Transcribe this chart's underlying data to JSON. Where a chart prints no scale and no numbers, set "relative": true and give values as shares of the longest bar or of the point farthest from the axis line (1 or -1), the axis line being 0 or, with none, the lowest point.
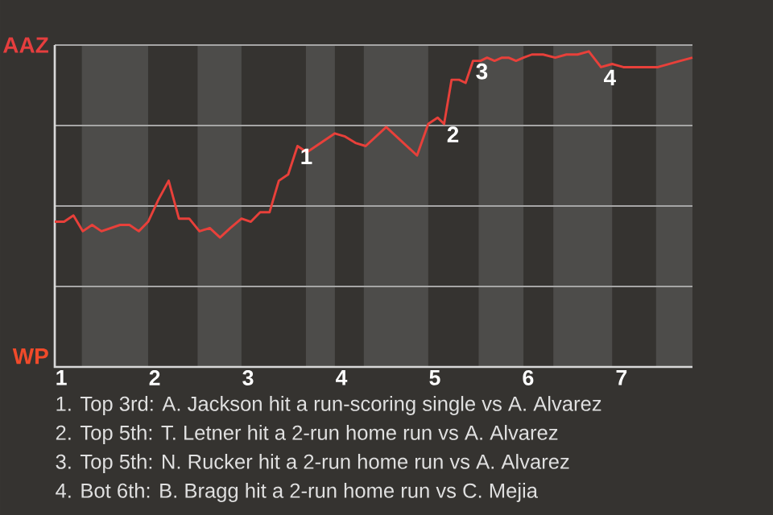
{
  "chart_data": {
    "type": "line",
    "relative": true,
    "x": [
      0.93,
      1.03,
      1.13,
      1.23,
      1.33,
      1.43,
      1.53,
      1.63,
      1.73,
      1.83,
      1.93,
      2.04,
      2.15,
      2.26,
      2.37,
      2.48,
      2.59,
      2.7,
      2.81,
      2.93,
      3.03,
      3.13,
      3.23,
      3.33,
      3.43,
      3.53,
      3.63,
      3.73,
      3.83,
      3.93,
      4.04,
      4.15,
      4.26,
      4.37,
      4.48,
      4.59,
      4.7,
      4.81,
      4.93,
      5.03,
      5.1,
      5.18,
      5.26,
      5.33,
      5.41,
      5.49,
      5.56,
      5.64,
      5.72,
      5.79,
      5.87,
      5.95,
      6.04,
      6.16,
      6.29,
      6.41,
      6.53,
      6.65,
      6.78,
      6.9,
      7.02,
      7.14,
      7.27,
      7.39,
      7.51,
      7.63,
      7.76
    ],
    "series": [
      {
        "color": "#e8403a",
        "values": [
          0.46,
          0.46,
          0.48,
          0.43,
          0.45,
          0.43,
          0.44,
          0.45,
          0.45,
          0.43,
          0.46,
          0.53,
          0.59,
          0.47,
          0.47,
          0.43,
          0.44,
          0.41,
          0.44,
          0.47,
          0.46,
          0.49,
          0.49,
          0.59,
          0.61,
          0.7,
          0.68,
          0.7,
          0.72,
          0.74,
          0.73,
          0.71,
          0.7,
          0.73,
          0.76,
          0.73,
          0.7,
          0.67,
          0.77,
          0.79,
          0.77,
          0.91,
          0.91,
          0.9,
          0.97,
          0.97,
          0.98,
          0.97,
          0.98,
          0.98,
          0.97,
          0.98,
          0.99,
          0.99,
          0.98,
          0.99,
          0.99,
          1,
          0.95,
          0.96,
          0.95,
          0.95,
          0.95,
          0.95,
          0.96,
          0.97,
          0.98
        ]
      }
    ],
    "xlim": [
      0.93,
      7.76
    ],
    "xticks": [
      1,
      2,
      3,
      4,
      5,
      6,
      7
    ],
    "grid": "y",
    "marker": "none",
    "line_style": "solid",
    "bands": [
      {
        "axis": "x",
        "from": 1.22,
        "to": 1.93,
        "color": "#4d4c4a"
      },
      {
        "axis": "x",
        "from": 2.46,
        "to": 2.93,
        "color": "#4d4c4a"
      },
      {
        "axis": "x",
        "from": 3.62,
        "to": 3.93,
        "color": "#4d4c4a"
      },
      {
        "axis": "x",
        "from": 4.24,
        "to": 4.93,
        "color": "#4d4c4a"
      },
      {
        "axis": "x",
        "from": 5.47,
        "to": 5.95,
        "color": "#4d4c4a"
      },
      {
        "axis": "x",
        "from": 6.27,
        "to": 6.9,
        "color": "#4d4c4a"
      },
      {
        "axis": "x",
        "from": 7.37,
        "to": 7.76,
        "color": "#4d4c4a"
      }
    ],
    "annotations": [
      "AAZ",
      "WP",
      {
        "text": "1",
        "x": 3.53,
        "y": 0.7
      },
      {
        "text": "2",
        "x": 5.1,
        "y": 0.77
      },
      {
        "text": "3",
        "x": 5.41,
        "y": 0.97
      },
      {
        "text": "4",
        "x": 6.78,
        "y": 0.95
      },
      "1. Top 3rd: A. Jackson hit a run-scoring single vs A. Alvarez",
      "2. Top 5th: T. Letner hit a 2-run home run vs A. Alvarez",
      "3. Top 5th: N. Rucker hit a 2-run home run vs A. Alvarez",
      "4. Bot 6th: B. Bragg hit a 2-run home run vs C. Mejia"
    ]
  }
}
